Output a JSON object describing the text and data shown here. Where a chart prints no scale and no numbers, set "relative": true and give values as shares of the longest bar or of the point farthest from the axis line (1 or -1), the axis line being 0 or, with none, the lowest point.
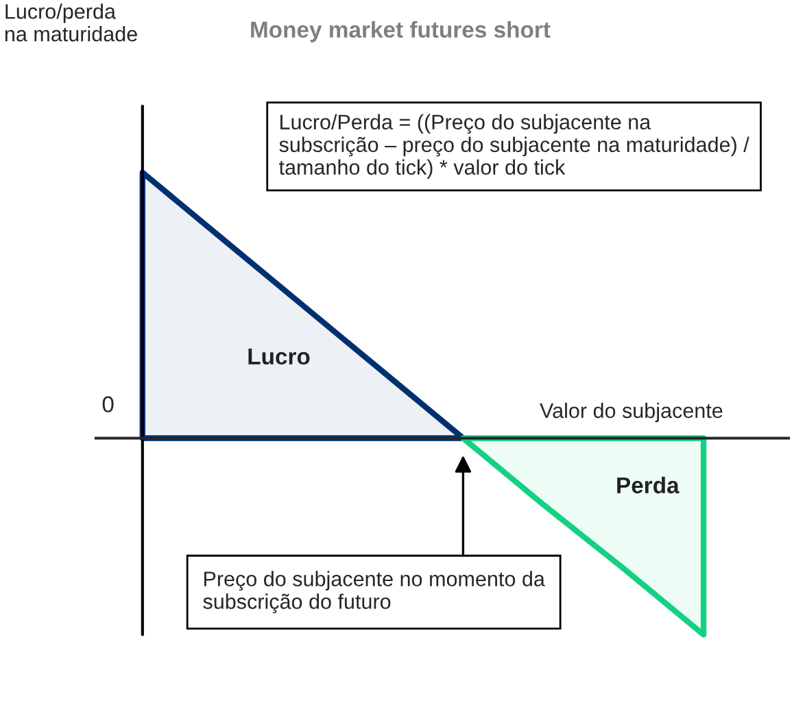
{
  "chart_data": {
    "type": "area",
    "title": "Money market futures short",
    "xlabel": "Valor do subjacente",
    "relative": true,
    "categories": [
      null,
      null,
      null,
      null,
      null,
      null,
      null,
      null
    ],
    "series": [
      {
        "name": "Lucro",
        "color": "#003070",
        "values": [
          1,
          0.75,
          0.5,
          0.25,
          0,
          null,
          null,
          null
        ]
      },
      {
        "name": "Perda",
        "color": "#14d182",
        "values": [
          null,
          null,
          null,
          null,
          0,
          -0.25,
          -0.49,
          -0.74
        ]
      }
    ],
    "annotations": [
      "Lucro/Perda = ((Preço do subjacente na subscrição – preço do subjacente na maturidade) / tamanho do tick) * valor do tick",
      "Preço do subjacente no momento da subscrição do futuro",
      "0",
      "Lucro/perda\nna maturidade"
    ],
    "legend": false
  }
}
